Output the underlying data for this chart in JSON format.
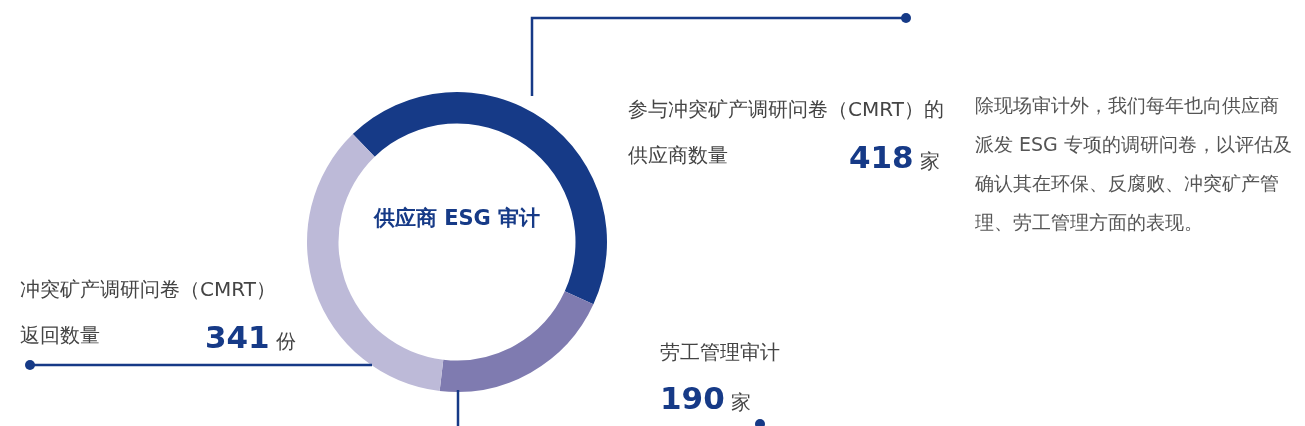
{
  "chart_data": {
    "type": "donut",
    "title": "供应商 ESG 审计",
    "categories": [
      "参与冲突矿产调研问卷（CMRT）的供应商数量",
      "劳工管理审计",
      "冲突矿产调研问卷（CMRT）返回数量"
    ],
    "values": [
      418,
      190,
      341
    ],
    "colors": [
      "#163a87",
      "#7f7bb0",
      "#bdbad8"
    ],
    "value_labels": [
      "418 家",
      "190 家",
      "341 份"
    ],
    "annotations": [
      "除现场审计外，我们每年也向供应商派发 ESG 专项的调研问卷，以评估及确认其在环保、反腐败、冲突矿产管理、劳工管理方面的表现。"
    ],
    "legend": false
  }
}
